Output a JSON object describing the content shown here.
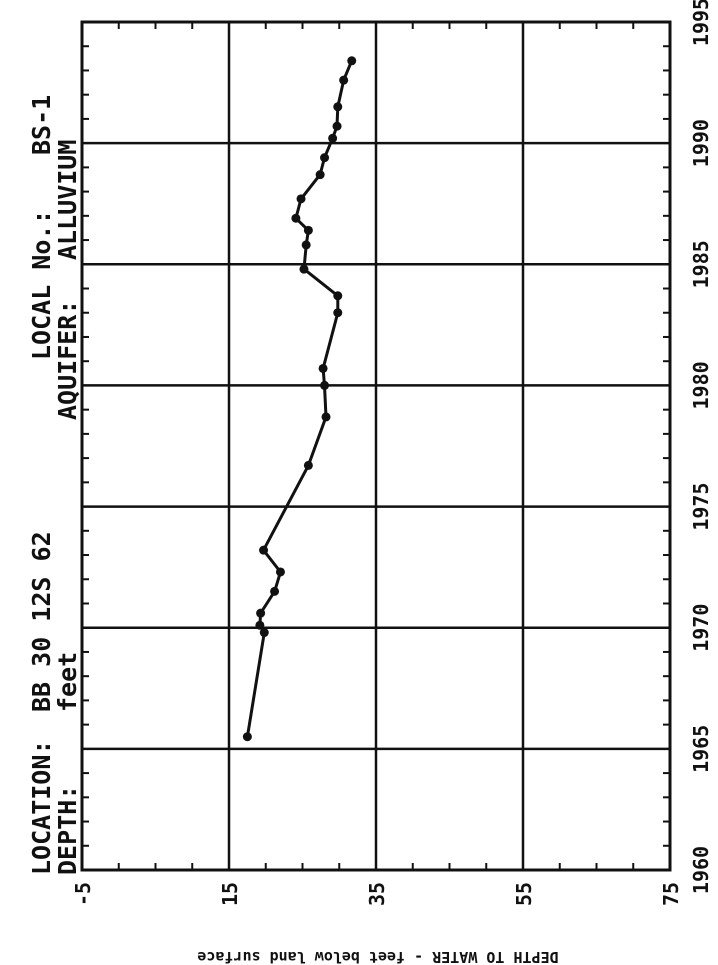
{
  "header": {
    "location_label": "LOCATION:",
    "location_value": "BB  30 12S 62",
    "depth_label": "DEPTH:",
    "depth_value": "feet",
    "local_no_label": "LOCAL No.:",
    "local_no_value": "BS-1",
    "aquifer_label": "AQUIFER:",
    "aquifer_value": "ALLUVIUM"
  },
  "chart_data": {
    "type": "line",
    "ylabel": "DEPTH TO WATER - feet below land surface",
    "xlabel": "",
    "xlim": [
      1960,
      1995
    ],
    "ylim": [
      -5,
      75
    ],
    "x_ticks": [
      "1960",
      "1965",
      "1970",
      "1975",
      "1980",
      "1985",
      "1990",
      "1995"
    ],
    "y_ticks": [
      "-5",
      "15",
      "35",
      "55",
      "75"
    ],
    "grid": true,
    "series": [
      {
        "color": "#111111",
        "points": [
          {
            "x": 1965.5,
            "y": 17.5
          },
          {
            "x": 1969.8,
            "y": 19.8
          },
          {
            "x": 1970.1,
            "y": 19.2
          },
          {
            "x": 1970.6,
            "y": 19.3
          },
          {
            "x": 1971.5,
            "y": 21.2
          },
          {
            "x": 1972.3,
            "y": 22.0
          },
          {
            "x": 1973.2,
            "y": 19.7
          },
          {
            "x": 1976.7,
            "y": 25.8
          },
          {
            "x": 1978.7,
            "y": 28.2
          },
          {
            "x": 1980.0,
            "y": 28.0
          },
          {
            "x": 1980.7,
            "y": 27.8
          },
          {
            "x": 1983.0,
            "y": 29.8
          },
          {
            "x": 1983.7,
            "y": 29.8
          },
          {
            "x": 1984.8,
            "y": 25.2
          },
          {
            "x": 1985.8,
            "y": 25.5
          },
          {
            "x": 1986.4,
            "y": 25.8
          },
          {
            "x": 1986.9,
            "y": 24.1
          },
          {
            "x": 1987.7,
            "y": 24.8
          },
          {
            "x": 1988.7,
            "y": 27.4
          },
          {
            "x": 1989.4,
            "y": 28.0
          },
          {
            "x": 1990.2,
            "y": 29.1
          },
          {
            "x": 1990.7,
            "y": 29.7
          },
          {
            "x": 1991.5,
            "y": 29.8
          },
          {
            "x": 1992.6,
            "y": 30.6
          },
          {
            "x": 1993.4,
            "y": 31.7
          }
        ]
      }
    ]
  }
}
